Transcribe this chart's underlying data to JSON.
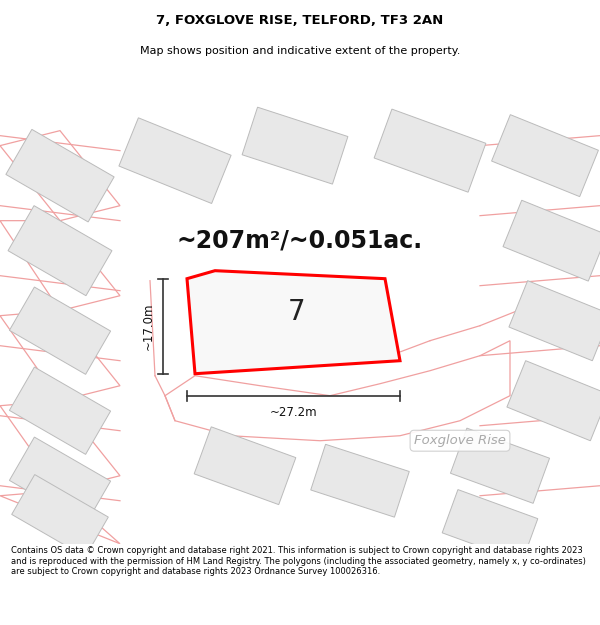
{
  "title": "7, FOXGLOVE RISE, TELFORD, TF3 2AN",
  "subtitle": "Map shows position and indicative extent of the property.",
  "area_text": "~207m²/~0.051ac.",
  "width_label": "~27.2m",
  "height_label": "~17.0m",
  "street_label": "Foxglove Rise",
  "plot_number": "7",
  "footer": "Contains OS data © Crown copyright and database right 2021. This information is subject to Crown copyright and database rights 2023 and is reproduced with the permission of HM Land Registry. The polygons (including the associated geometry, namely x, y co-ordinates) are subject to Crown copyright and database rights 2023 Ordnance Survey 100026316.",
  "bg_color": "#ffffff",
  "map_bg": "#ffffff",
  "plot_edge": "#ff0000",
  "bld_fill": "#e8e8e8",
  "bld_edge": "#bbbbbb",
  "lot_line": "#f0a0a0",
  "arrow_color": "#333333",
  "title_color": "#000000",
  "street_color": "#aaaaaa",
  "footer_color": "#000000"
}
